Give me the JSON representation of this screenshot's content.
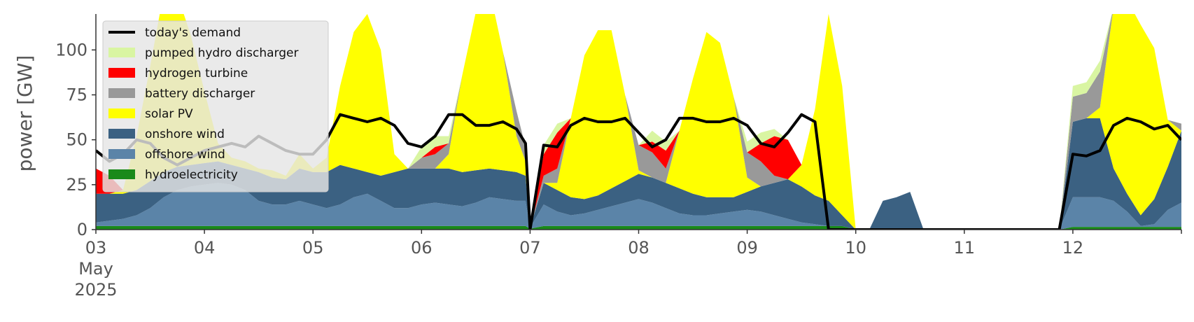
{
  "chart_data": {
    "type": "area",
    "ylabel": "power [GW]",
    "xlabel": "",
    "ylim": [
      0,
      120
    ],
    "xlim": [
      0,
      240
    ],
    "y_ticks": [
      "0",
      "25",
      "50",
      "75",
      "100"
    ],
    "x_ticks": [
      {
        "lines": [
          "03",
          "May",
          "2025"
        ],
        "hour": 0
      },
      {
        "lines": [
          "04"
        ],
        "hour": 24
      },
      {
        "lines": [
          "05"
        ],
        "hour": 48
      },
      {
        "lines": [
          "06"
        ],
        "hour": 72
      },
      {
        "lines": [
          "07"
        ],
        "hour": 96
      },
      {
        "lines": [
          "08"
        ],
        "hour": 120
      },
      {
        "lines": [
          "09"
        ],
        "hour": 144
      },
      {
        "lines": [
          "10"
        ],
        "hour": 168
      },
      {
        "lines": [
          "11"
        ],
        "hour": 192
      },
      {
        "lines": [
          "12"
        ],
        "hour": 216
      }
    ],
    "legend_position": "top-left",
    "legend": [
      {
        "label": "today's demand",
        "color": "#000000",
        "kind": "line"
      },
      {
        "label": "pumped hydro discharger",
        "color": "#d9f5a2",
        "kind": "area"
      },
      {
        "label": "hydrogen turbine",
        "color": "#ff0000",
        "kind": "area"
      },
      {
        "label": "battery discharger",
        "color": "#999999",
        "kind": "area"
      },
      {
        "label": "solar PV",
        "color": "#ffff00",
        "kind": "area"
      },
      {
        "label": "onshore wind",
        "color": "#3b6182",
        "kind": "area"
      },
      {
        "label": "offshore wind",
        "color": "#5b84a8",
        "kind": "area"
      },
      {
        "label": "hydroelectricity",
        "color": "#1a8a1a",
        "kind": "area"
      }
    ],
    "stack_order_bottom_to_top": [
      "hydroelectricity",
      "offshore wind",
      "onshore wind",
      "solar PV",
      "battery discharger",
      "hydrogen turbine",
      "pumped hydro discharger"
    ],
    "x_hours": [
      0,
      3,
      6,
      9,
      12,
      15,
      18,
      21,
      24,
      27,
      30,
      33,
      36,
      39,
      42,
      45,
      48,
      51,
      54,
      57,
      60,
      63,
      66,
      69,
      72,
      75,
      78,
      81,
      84,
      87,
      90,
      93,
      95,
      96,
      99,
      102,
      105,
      108,
      111,
      114,
      117,
      120,
      123,
      126,
      129,
      132,
      135,
      138,
      141,
      144,
      147,
      150,
      153,
      156,
      159,
      162,
      165,
      168,
      171,
      174,
      177,
      180,
      183,
      186,
      189,
      192,
      195,
      198,
      201,
      204,
      207,
      210,
      213,
      216,
      219,
      222,
      225,
      228,
      231,
      234,
      237,
      240
    ],
    "series": [
      {
        "name": "hydroelectricity",
        "values": [
          2,
          2,
          2,
          2,
          2,
          2,
          2,
          2,
          2,
          2,
          2,
          2,
          2,
          2,
          2,
          2,
          2,
          2,
          2,
          2,
          2,
          2,
          2,
          2,
          2,
          2,
          2,
          2,
          2,
          2,
          2,
          2,
          2,
          0.5,
          2,
          2,
          2,
          2,
          2,
          2,
          2,
          2,
          2,
          2,
          2,
          2,
          2,
          2,
          2,
          2,
          2,
          2,
          2,
          2,
          2,
          2,
          2,
          0,
          0,
          0,
          0,
          0,
          0,
          0,
          0,
          0,
          0,
          0,
          0,
          0,
          0,
          0,
          0,
          1.5,
          1.5,
          1.5,
          1.5,
          1.5,
          1.5,
          1.5,
          1.5,
          1.5
        ]
      },
      {
        "name": "offshore wind",
        "values": [
          2,
          3,
          4,
          6,
          10,
          16,
          20,
          22,
          23,
          24,
          23,
          20,
          14,
          12,
          12,
          14,
          12,
          10,
          12,
          16,
          18,
          14,
          10,
          10,
          12,
          13,
          12,
          11,
          13,
          16,
          15,
          14,
          14,
          0.5,
          12,
          8,
          6,
          7,
          9,
          11,
          13,
          15,
          13,
          10,
          7,
          6,
          6,
          7,
          8,
          9,
          8,
          6,
          4,
          2,
          1,
          0,
          0,
          0,
          0,
          0,
          0,
          0,
          0,
          0,
          0,
          0,
          0,
          0,
          0,
          0,
          0,
          0,
          0,
          16.5,
          16.5,
          16.5,
          14.5,
          8.5,
          0.5,
          1.5,
          9.5,
          13.5
        ]
      },
      {
        "name": "onshore wind",
        "values": [
          16,
          15,
          14,
          14,
          15,
          14,
          13,
          12,
          12,
          12,
          11,
          12,
          16,
          15,
          14,
          18,
          18,
          20,
          22,
          16,
          12,
          14,
          20,
          22,
          20,
          19,
          20,
          19,
          18,
          16,
          16,
          16,
          14,
          0.0,
          12,
          12,
          10,
          8,
          8,
          10,
          12,
          14,
          14,
          14,
          14,
          12,
          10,
          9,
          8,
          10,
          14,
          18,
          22,
          20,
          16,
          14,
          6,
          0,
          0,
          16,
          18,
          21,
          0,
          0,
          0,
          0,
          0,
          0,
          0,
          0,
          0,
          0,
          0,
          42.0,
          44.0,
          44.0,
          18.0,
          10.0,
          6.0,
          14.0,
          24.0,
          40.0
        ]
      },
      {
        "name": "solar PV",
        "values": [
          0,
          0,
          2,
          30,
          64,
          100,
          96,
          72,
          40,
          10,
          4,
          4,
          2,
          4,
          2,
          8,
          2,
          8,
          44,
          76,
          88,
          70,
          10,
          0,
          0,
          0,
          8,
          54,
          88,
          100,
          66,
          20,
          8,
          0.0,
          0,
          4,
          44,
          80,
          92,
          88,
          48,
          2,
          0,
          0,
          32,
          64,
          92,
          86,
          56,
          8,
          0,
          0,
          0,
          12,
          48,
          104,
          72,
          0,
          0,
          0,
          0,
          0,
          0,
          0,
          0,
          0,
          0,
          0,
          0,
          0,
          0,
          0,
          0,
          0.0,
          0.0,
          6.0,
          90.0,
          108.0,
          106.0,
          84.0,
          26.0,
          0.0
        ]
      },
      {
        "name": "battery discharger",
        "values": [
          0,
          0,
          0,
          0,
          0,
          0,
          0,
          0,
          0,
          0,
          0,
          0,
          0,
          0,
          0,
          0,
          0,
          0,
          0,
          0,
          0,
          0,
          0,
          0,
          6,
          8,
          6,
          0,
          0,
          0,
          0,
          14,
          8,
          0.0,
          4,
          8,
          0,
          0,
          0,
          0,
          0,
          14,
          14,
          8,
          0,
          0,
          0,
          0,
          0,
          14,
          14,
          4,
          0,
          0,
          0,
          0,
          0,
          0,
          0,
          0,
          0,
          0,
          0,
          0,
          0,
          0,
          0,
          0,
          0,
          0,
          0,
          0,
          0,
          14.0,
          14.0,
          20.0,
          0.0,
          0.0,
          0.0,
          0.0,
          0.0,
          4.0
        ]
      },
      {
        "name": "hydrogen turbine",
        "values": [
          14,
          10,
          0,
          0,
          0,
          0,
          0,
          0,
          0,
          0,
          0,
          0,
          0,
          0,
          0,
          0,
          0,
          0,
          0,
          0,
          0,
          0,
          0,
          0,
          0,
          4,
          0,
          0,
          0,
          0,
          0,
          0,
          0,
          0.0,
          12,
          20,
          0,
          0,
          0,
          0,
          0,
          0,
          6,
          10,
          0,
          0,
          0,
          0,
          0,
          0,
          10,
          22,
          22,
          0,
          0,
          0,
          0,
          0,
          0,
          0,
          0,
          0,
          0,
          0,
          0,
          0,
          0,
          0,
          0,
          0,
          0,
          0,
          0,
          0.0,
          0.0,
          0.0,
          0.0,
          0.0,
          0.0,
          0.0,
          0.0,
          0.0
        ]
      },
      {
        "name": "pumped hydro discharger",
        "values": [
          0,
          0,
          0,
          0,
          0,
          0,
          0,
          0,
          0,
          0,
          0,
          0,
          0,
          0,
          0,
          0,
          0,
          0,
          0,
          0,
          0,
          0,
          0,
          0,
          6,
          6,
          4,
          0,
          0,
          0,
          0,
          0,
          0,
          0.0,
          5,
          5,
          0,
          0,
          0,
          0,
          0,
          0,
          6,
          5,
          0,
          0,
          0,
          0,
          0,
          6,
          6,
          4,
          0,
          0,
          0,
          0,
          0,
          0,
          0,
          0,
          0,
          0,
          0,
          0,
          0,
          0,
          0,
          0,
          0,
          0,
          0,
          0,
          0,
          6.0,
          6.0,
          6.0,
          0.0,
          0.0,
          0.0,
          0.0,
          0.0,
          0.0
        ]
      },
      {
        "name": "today's demand",
        "values": [
          44,
          38,
          42,
          50,
          48,
          40,
          36,
          40,
          44,
          46,
          48,
          46,
          52,
          48,
          44,
          42,
          42,
          50,
          64,
          62,
          60,
          62,
          58,
          48,
          46,
          52,
          64,
          64,
          58,
          58,
          60,
          56,
          48,
          0,
          47,
          46,
          58,
          62,
          60,
          60,
          62,
          54,
          46,
          50,
          62,
          62,
          60,
          60,
          62,
          58,
          48,
          46,
          54,
          64,
          60,
          0,
          0,
          0,
          0,
          0,
          0,
          0,
          0,
          0,
          0,
          0,
          0,
          0,
          0,
          0,
          0,
          0,
          0,
          42,
          41,
          44,
          58,
          62,
          60,
          56,
          58,
          50
        ]
      }
    ]
  }
}
